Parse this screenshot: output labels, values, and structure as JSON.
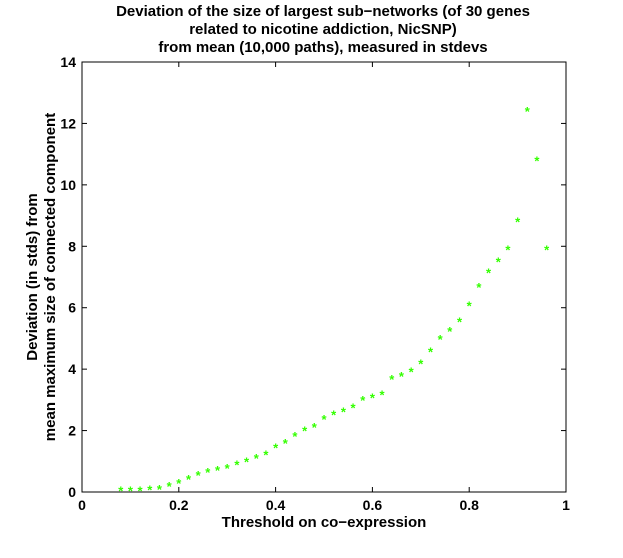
{
  "chart_data": {
    "type": "scatter",
    "title": [
      "Deviation of the size of largest sub−networks (of  30 genes",
      "related to nicotine addiction, NicSNP)",
      "from mean (10,000 paths), measured in stdevs"
    ],
    "xlabel": "Threshold on co−expression",
    "ylabel": [
      "Deviation (in stds) from",
      "mean maximum size of connected component"
    ],
    "xlim": [
      0,
      1
    ],
    "ylim": [
      0,
      14
    ],
    "xticks": [
      0,
      0.2,
      0.4,
      0.6,
      0.8,
      1
    ],
    "xtick_labels": [
      "0",
      "0.2",
      "0.4",
      "0.6",
      "0.8",
      "1"
    ],
    "yticks": [
      0,
      2,
      4,
      6,
      8,
      10,
      12,
      14
    ],
    "ytick_labels": [
      "0",
      "2",
      "4",
      "6",
      "8",
      "10",
      "12",
      "14"
    ],
    "grid": false,
    "marker": "*",
    "marker_color": "#33ff00",
    "series": [
      {
        "x": [
          0.08,
          0.1,
          0.12,
          0.14,
          0.16,
          0.18,
          0.2,
          0.22,
          0.24,
          0.26,
          0.28,
          0.3,
          0.32,
          0.34,
          0.36,
          0.38,
          0.4,
          0.42,
          0.44,
          0.46,
          0.48,
          0.5,
          0.52,
          0.54,
          0.56,
          0.58,
          0.6,
          0.62,
          0.64,
          0.66,
          0.68,
          0.7,
          0.72,
          0.74,
          0.76,
          0.78,
          0.8,
          0.82,
          0.84,
          0.86,
          0.88,
          0.9,
          0.92,
          0.94,
          0.96
        ],
        "y": [
          0.05,
          0.05,
          0.05,
          0.08,
          0.1,
          0.2,
          0.3,
          0.42,
          0.55,
          0.65,
          0.72,
          0.78,
          0.9,
          1.0,
          1.1,
          1.22,
          1.45,
          1.6,
          1.82,
          2.0,
          2.12,
          2.38,
          2.52,
          2.62,
          2.75,
          3.0,
          3.08,
          3.18,
          3.68,
          3.78,
          3.92,
          4.18,
          4.58,
          4.98,
          5.25,
          5.55,
          6.08,
          6.68,
          7.15,
          7.5,
          7.9,
          8.8,
          12.4,
          10.8,
          7.9
        ]
      }
    ]
  }
}
